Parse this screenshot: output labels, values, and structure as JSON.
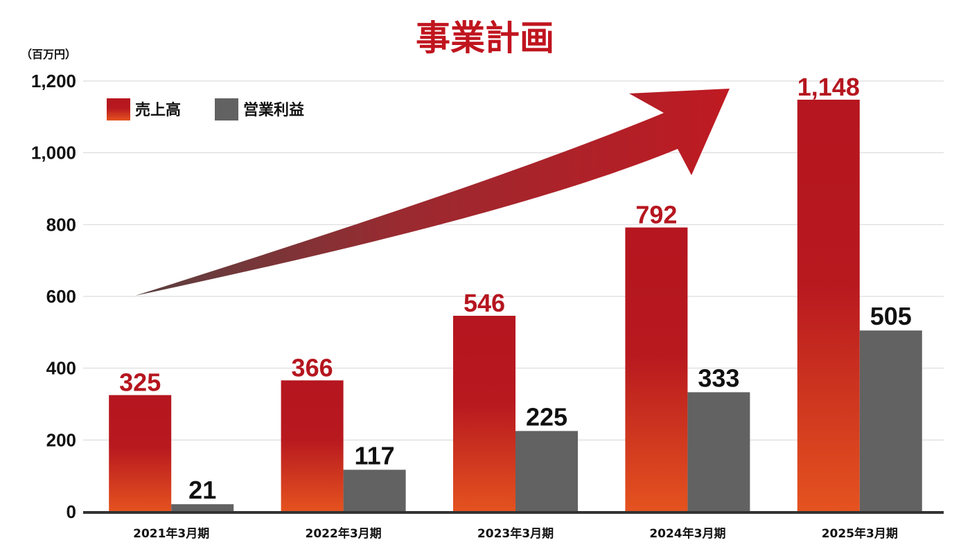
{
  "chart_data": {
    "type": "bar",
    "title": "事業計画",
    "unit": "（百万円）",
    "categories": [
      "2021年3月期",
      "2022年3月期",
      "2023年3月期",
      "2024年3月期",
      "2025年3月期"
    ],
    "series": [
      {
        "name": "売上高",
        "values": [
          325,
          366,
          546,
          792,
          1148
        ],
        "labels": [
          "325",
          "366",
          "546",
          "792",
          "1,148"
        ]
      },
      {
        "name": "営業利益",
        "values": [
          21,
          117,
          225,
          333,
          505
        ],
        "labels": [
          "21",
          "117",
          "225",
          "333",
          "505"
        ]
      }
    ],
    "yticks": [
      {
        "value": 0,
        "label": "0"
      },
      {
        "value": 200,
        "label": "200"
      },
      {
        "value": 400,
        "label": "400"
      },
      {
        "value": 600,
        "label": "600"
      },
      {
        "value": 800,
        "label": "800"
      },
      {
        "value": 1000,
        "label": "1,000"
      },
      {
        "value": 1200,
        "label": "1,200"
      }
    ],
    "ylim": [
      0,
      1200
    ],
    "grid": true,
    "legend_position": "top-left",
    "annotation": "upward-growth-arrow",
    "colors": {
      "sales_top": "#b5161f",
      "sales_bottom": "#e5531f",
      "profit": "#626262",
      "sales_label": "#b5161f",
      "profit_label": "#111111",
      "title": "#c0151f",
      "arrow_start": "#5a4040",
      "arrow_end": "#bf1a22"
    }
  }
}
